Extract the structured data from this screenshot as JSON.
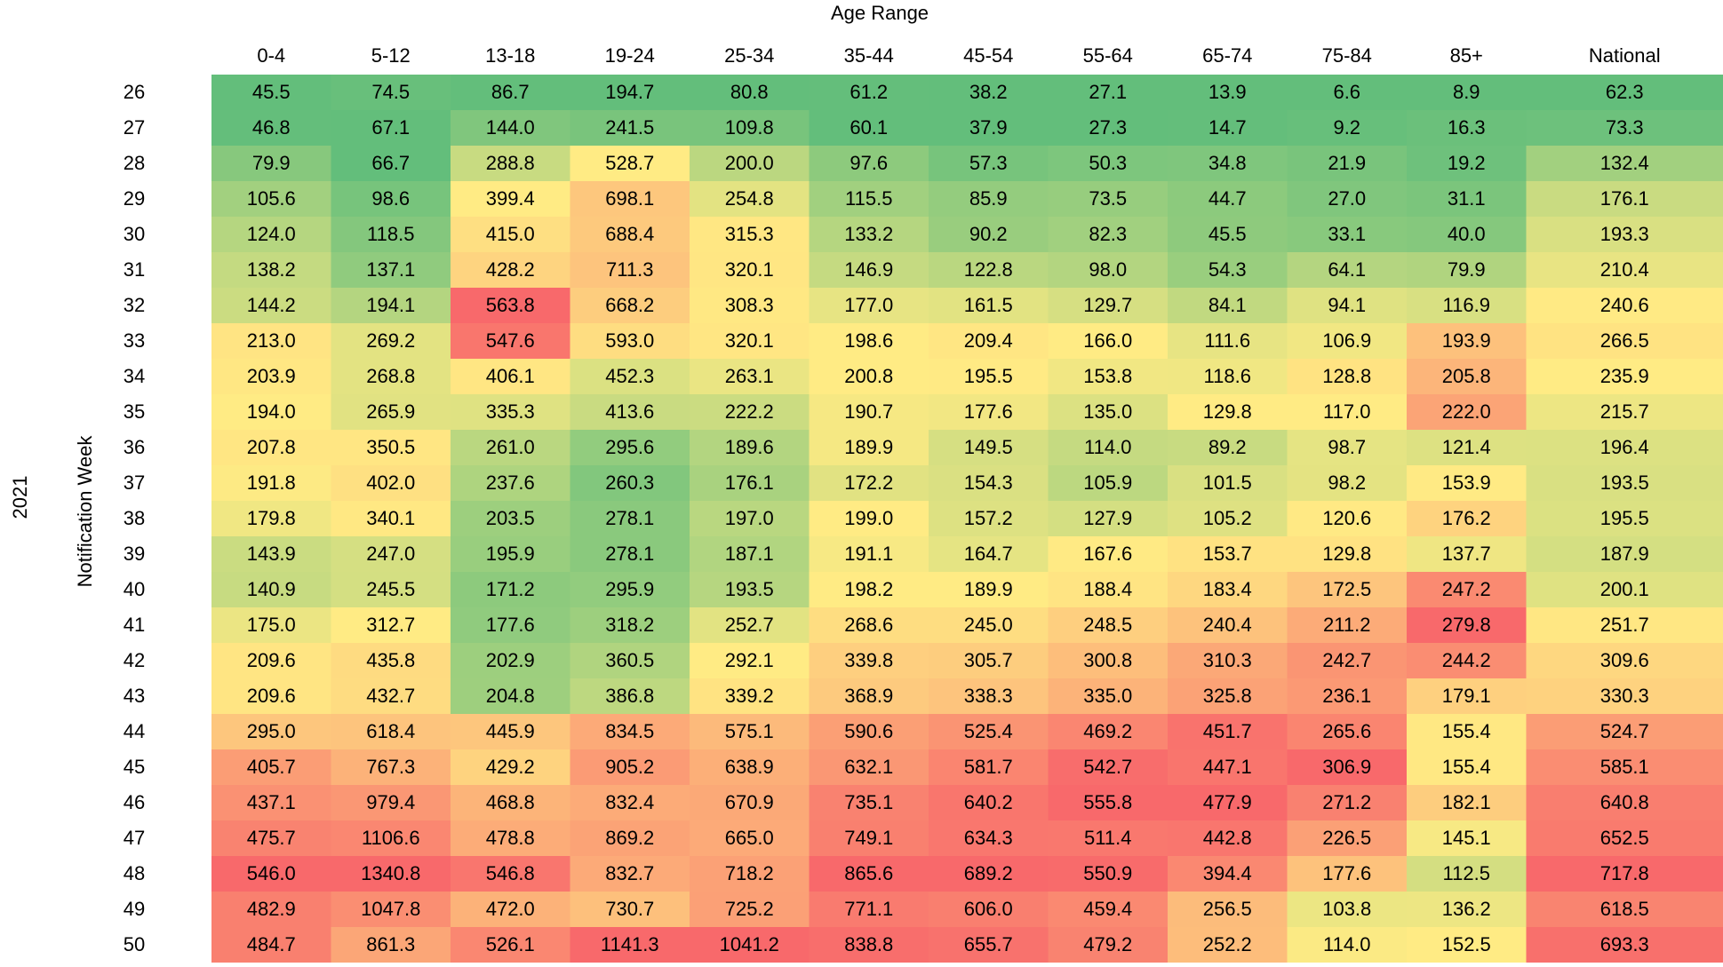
{
  "chart_data": {
    "type": "heatmap",
    "x_label": "Age Range",
    "y_label": "Notification Week",
    "y_group_label": "2021",
    "columns": [
      "0-4",
      "5-12",
      "13-18",
      "19-24",
      "25-34",
      "35-44",
      "45-54",
      "55-64",
      "65-74",
      "75-84",
      "85+",
      "National"
    ],
    "rows": [
      "26",
      "27",
      "28",
      "29",
      "30",
      "31",
      "32",
      "33",
      "34",
      "35",
      "36",
      "37",
      "38",
      "39",
      "40",
      "41",
      "42",
      "43",
      "44",
      "45",
      "46",
      "47",
      "48",
      "49",
      "50"
    ],
    "values": [
      [
        45.5,
        74.5,
        86.7,
        194.7,
        80.8,
        61.2,
        38.2,
        27.1,
        13.9,
        6.6,
        8.9,
        62.3
      ],
      [
        46.8,
        67.1,
        144.0,
        241.5,
        109.8,
        60.1,
        37.9,
        27.3,
        14.7,
        9.2,
        16.3,
        73.3
      ],
      [
        79.9,
        66.7,
        288.8,
        528.7,
        200.0,
        97.6,
        57.3,
        50.3,
        34.8,
        21.9,
        19.2,
        132.4
      ],
      [
        105.6,
        98.6,
        399.4,
        698.1,
        254.8,
        115.5,
        85.9,
        73.5,
        44.7,
        27.0,
        31.1,
        176.1
      ],
      [
        124.0,
        118.5,
        415.0,
        688.4,
        315.3,
        133.2,
        90.2,
        82.3,
        45.5,
        33.1,
        40.0,
        193.3
      ],
      [
        138.2,
        137.1,
        428.2,
        711.3,
        320.1,
        146.9,
        122.8,
        98.0,
        54.3,
        64.1,
        79.9,
        210.4
      ],
      [
        144.2,
        194.1,
        563.8,
        668.2,
        308.3,
        177.0,
        161.5,
        129.7,
        84.1,
        94.1,
        116.9,
        240.6
      ],
      [
        213.0,
        269.2,
        547.6,
        593.0,
        320.1,
        198.6,
        209.4,
        166.0,
        111.6,
        106.9,
        193.9,
        266.5
      ],
      [
        203.9,
        268.8,
        406.1,
        452.3,
        263.1,
        200.8,
        195.5,
        153.8,
        118.6,
        128.8,
        205.8,
        235.9
      ],
      [
        194.0,
        265.9,
        335.3,
        413.6,
        222.2,
        190.7,
        177.6,
        135.0,
        129.8,
        117.0,
        222.0,
        215.7
      ],
      [
        207.8,
        350.5,
        261.0,
        295.6,
        189.6,
        189.9,
        149.5,
        114.0,
        89.2,
        98.7,
        121.4,
        196.4
      ],
      [
        191.8,
        402.0,
        237.6,
        260.3,
        176.1,
        172.2,
        154.3,
        105.9,
        101.5,
        98.2,
        153.9,
        193.5
      ],
      [
        179.8,
        340.1,
        203.5,
        278.1,
        197.0,
        199.0,
        157.2,
        127.9,
        105.2,
        120.6,
        176.2,
        195.5
      ],
      [
        143.9,
        247.0,
        195.9,
        278.1,
        187.1,
        191.1,
        164.7,
        167.6,
        153.7,
        129.8,
        137.7,
        187.9
      ],
      [
        140.9,
        245.5,
        171.2,
        295.9,
        193.5,
        198.2,
        189.9,
        188.4,
        183.4,
        172.5,
        247.2,
        200.1
      ],
      [
        175.0,
        312.7,
        177.6,
        318.2,
        252.7,
        268.6,
        245.0,
        248.5,
        240.4,
        211.2,
        279.8,
        251.7
      ],
      [
        209.6,
        435.8,
        202.9,
        360.5,
        292.1,
        339.8,
        305.7,
        300.8,
        310.3,
        242.7,
        244.2,
        309.6
      ],
      [
        209.6,
        432.7,
        204.8,
        386.8,
        339.2,
        368.9,
        338.3,
        335.0,
        325.8,
        236.1,
        179.1,
        330.3
      ],
      [
        295.0,
        618.4,
        445.9,
        834.5,
        575.1,
        590.6,
        525.4,
        469.2,
        451.7,
        265.6,
        155.4,
        524.7
      ],
      [
        405.7,
        767.3,
        429.2,
        905.2,
        638.9,
        632.1,
        581.7,
        542.7,
        447.1,
        306.9,
        155.4,
        585.1
      ],
      [
        437.1,
        979.4,
        468.8,
        832.4,
        670.9,
        735.1,
        640.2,
        555.8,
        477.9,
        271.2,
        182.1,
        640.8
      ],
      [
        475.7,
        1106.6,
        478.8,
        869.2,
        665.0,
        749.1,
        634.3,
        511.4,
        442.8,
        226.5,
        145.1,
        652.5
      ],
      [
        546.0,
        1340.8,
        546.8,
        832.7,
        718.2,
        865.6,
        689.2,
        550.9,
        394.4,
        177.6,
        112.5,
        717.8
      ],
      [
        482.9,
        1047.8,
        472.0,
        730.7,
        725.2,
        771.1,
        606.0,
        459.4,
        256.5,
        103.8,
        136.2,
        618.5
      ],
      [
        484.7,
        861.3,
        526.1,
        1141.3,
        1041.2,
        838.8,
        655.7,
        479.2,
        252.2,
        114.0,
        152.5,
        693.3
      ]
    ],
    "value_labels": [
      [
        "45.5",
        "74.5",
        "86.7",
        "194.7",
        "80.8",
        "61.2",
        "38.2",
        "27.1",
        "13.9",
        "6.6",
        "8.9",
        "62.3"
      ],
      [
        "46.8",
        "67.1",
        "144.0",
        "241.5",
        "109.8",
        "60.1",
        "37.9",
        "27.3",
        "14.7",
        "9.2",
        "16.3",
        "73.3"
      ],
      [
        "79.9",
        "66.7",
        "288.8",
        "528.7",
        "200.0",
        "97.6",
        "57.3",
        "50.3",
        "34.8",
        "21.9",
        "19.2",
        "132.4"
      ],
      [
        "105.6",
        "98.6",
        "399.4",
        "698.1",
        "254.8",
        "115.5",
        "85.9",
        "73.5",
        "44.7",
        "27.0",
        "31.1",
        "176.1"
      ],
      [
        "124.0",
        "118.5",
        "415.0",
        "688.4",
        "315.3",
        "133.2",
        "90.2",
        "82.3",
        "45.5",
        "33.1",
        "40.0",
        "193.3"
      ],
      [
        "138.2",
        "137.1",
        "428.2",
        "711.3",
        "320.1",
        "146.9",
        "122.8",
        "98.0",
        "54.3",
        "64.1",
        "79.9",
        "210.4"
      ],
      [
        "144.2",
        "194.1",
        "563.8",
        "668.2",
        "308.3",
        "177.0",
        "161.5",
        "129.7",
        "84.1",
        "94.1",
        "116.9",
        "240.6"
      ],
      [
        "213.0",
        "269.2",
        "547.6",
        "593.0",
        "320.1",
        "198.6",
        "209.4",
        "166.0",
        "111.6",
        "106.9",
        "193.9",
        "266.5"
      ],
      [
        "203.9",
        "268.8",
        "406.1",
        "452.3",
        "263.1",
        "200.8",
        "195.5",
        "153.8",
        "118.6",
        "128.8",
        "205.8",
        "235.9"
      ],
      [
        "194.0",
        "265.9",
        "335.3",
        "413.6",
        "222.2",
        "190.7",
        "177.6",
        "135.0",
        "129.8",
        "117.0",
        "222.0",
        "215.7"
      ],
      [
        "207.8",
        "350.5",
        "261.0",
        "295.6",
        "189.6",
        "189.9",
        "149.5",
        "114.0",
        "89.2",
        "98.7",
        "121.4",
        "196.4"
      ],
      [
        "191.8",
        "402.0",
        "237.6",
        "260.3",
        "176.1",
        "172.2",
        "154.3",
        "105.9",
        "101.5",
        "98.2",
        "153.9",
        "193.5"
      ],
      [
        "179.8",
        "340.1",
        "203.5",
        "278.1",
        "197.0",
        "199.0",
        "157.2",
        "127.9",
        "105.2",
        "120.6",
        "176.2",
        "195.5"
      ],
      [
        "143.9",
        "247.0",
        "195.9",
        "278.1",
        "187.1",
        "191.1",
        "164.7",
        "167.6",
        "153.7",
        "129.8",
        "137.7",
        "187.9"
      ],
      [
        "140.9",
        "245.5",
        "171.2",
        "295.9",
        "193.5",
        "198.2",
        "189.9",
        "188.4",
        "183.4",
        "172.5",
        "247.2",
        "200.1"
      ],
      [
        "175.0",
        "312.7",
        "177.6",
        "318.2",
        "252.7",
        "268.6",
        "245.0",
        "248.5",
        "240.4",
        "211.2",
        "279.8",
        "251.7"
      ],
      [
        "209.6",
        "435.8",
        "202.9",
        "360.5",
        "292.1",
        "339.8",
        "305.7",
        "300.8",
        "310.3",
        "242.7",
        "244.2",
        "309.6"
      ],
      [
        "209.6",
        "432.7",
        "204.8",
        "386.8",
        "339.2",
        "368.9",
        "338.3",
        "335.0",
        "325.8",
        "236.1",
        "179.1",
        "330.3"
      ],
      [
        "295.0",
        "618.4",
        "445.9",
        "834.5",
        "575.1",
        "590.6",
        "525.4",
        "469.2",
        "451.7",
        "265.6",
        "155.4",
        "524.7"
      ],
      [
        "405.7",
        "767.3",
        "429.2",
        "905.2",
        "638.9",
        "632.1",
        "581.7",
        "542.7",
        "447.1",
        "306.9",
        "155.4",
        "585.1"
      ],
      [
        "437.1",
        "979.4",
        "468.8",
        "832.4",
        "670.9",
        "735.1",
        "640.2",
        "555.8",
        "477.9",
        "271.2",
        "182.1",
        "640.8"
      ],
      [
        "475.7",
        "1106.6",
        "478.8",
        "869.2",
        "665.0",
        "749.1",
        "634.3",
        "511.4",
        "442.8",
        "226.5",
        "145.1",
        "652.5"
      ],
      [
        "546.0",
        "1340.8",
        "546.8",
        "832.7",
        "718.2",
        "865.6",
        "689.2",
        "550.9",
        "394.4",
        "177.6",
        "112.5",
        "717.8"
      ],
      [
        "482.9",
        "1047.8",
        "472.0",
        "730.7",
        "725.2",
        "771.1",
        "606.0",
        "459.4",
        "256.5",
        "103.8",
        "136.2",
        "618.5"
      ],
      [
        "484.7",
        "861.3",
        "526.1",
        "1141.3",
        "1041.2",
        "838.8",
        "655.7",
        "479.2",
        "252.2",
        "114.0",
        "152.5",
        "693.3"
      ]
    ],
    "colors": [
      "#63be7b",
      "#ffeb84",
      "#f8696b"
    ],
    "color_scope": "column"
  }
}
